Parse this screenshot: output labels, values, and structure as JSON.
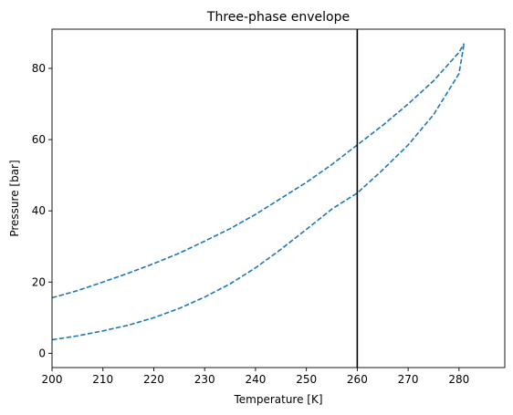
{
  "chart_data": {
    "type": "line",
    "title": "Three-phase envelope",
    "xlabel": "Temperature [K]",
    "ylabel": "Pressure [bar]",
    "xlim": [
      200,
      289
    ],
    "ylim": [
      -4,
      91
    ],
    "xticks": [
      200,
      210,
      220,
      230,
      240,
      250,
      260,
      270,
      280
    ],
    "yticks": [
      0,
      20,
      40,
      60,
      80
    ],
    "grid": false,
    "series": [
      {
        "style": "dashed",
        "color": "#1f77b4",
        "x": [
          200,
          205,
          210,
          215,
          220,
          225,
          230,
          235,
          240,
          245,
          250,
          255,
          260,
          265,
          270,
          275,
          280,
          281
        ],
        "y": [
          15.6,
          17.6,
          20.0,
          22.5,
          25.2,
          28.1,
          31.5,
          35.0,
          39.0,
          43.5,
          48.0,
          53.0,
          58.5,
          64.0,
          70.0,
          76.5,
          84.5,
          87.0
        ]
      },
      {
        "style": "dashed",
        "color": "#1f77b4",
        "x": [
          200,
          205,
          210,
          215,
          220,
          225,
          230,
          235,
          240,
          245,
          250,
          255,
          260,
          265,
          270,
          275,
          280,
          281
        ],
        "y": [
          3.8,
          4.9,
          6.3,
          7.9,
          10.0,
          12.6,
          15.8,
          19.5,
          24.0,
          29.2,
          34.8,
          40.5,
          45.0,
          51.5,
          58.5,
          67.0,
          78.5,
          87.0
        ]
      }
    ],
    "vertical_line": {
      "x": 260,
      "color": "#000000"
    }
  }
}
